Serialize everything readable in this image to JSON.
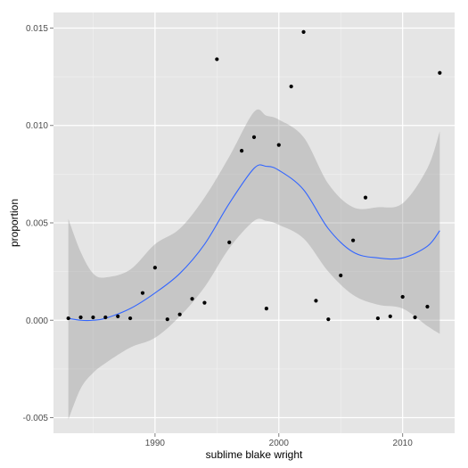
{
  "chart_data": {
    "type": "scatter",
    "xlabel": "sublime blake wright",
    "ylabel": "proportion",
    "xlim": [
      1981.8,
      2014.2
    ],
    "ylim": [
      -0.0058,
      0.0158
    ],
    "x_ticks": [
      1990,
      2000,
      2010
    ],
    "y_ticks": [
      -0.005,
      0.0,
      0.005,
      0.01,
      0.015
    ],
    "y_tick_labels": [
      "-0.005",
      "0.000",
      "0.005",
      "0.010",
      "0.015"
    ],
    "grid": true,
    "colors": {
      "panel": "#e5e5e5",
      "grid_major": "#ffffff",
      "grid_minor": "#f2f2f2",
      "points": "#000000",
      "smooth_line": "#3366ff",
      "confidence_band": "#999999"
    },
    "points": [
      {
        "x": 1983,
        "y": 0.0001
      },
      {
        "x": 1984,
        "y": 0.00015
      },
      {
        "x": 1985,
        "y": 0.00015
      },
      {
        "x": 1986,
        "y": 0.00015
      },
      {
        "x": 1987,
        "y": 0.0002
      },
      {
        "x": 1988,
        "y": 0.0001
      },
      {
        "x": 1989,
        "y": 0.0014
      },
      {
        "x": 1990,
        "y": 0.0027
      },
      {
        "x": 1991,
        "y": 5e-05
      },
      {
        "x": 1992,
        "y": 0.0003
      },
      {
        "x": 1993,
        "y": 0.0011
      },
      {
        "x": 1994,
        "y": 0.0009
      },
      {
        "x": 1995,
        "y": 0.0134
      },
      {
        "x": 1996,
        "y": 0.004
      },
      {
        "x": 1997,
        "y": 0.0087
      },
      {
        "x": 1998,
        "y": 0.0094
      },
      {
        "x": 1999,
        "y": 0.0006
      },
      {
        "x": 2000,
        "y": 0.009
      },
      {
        "x": 2001,
        "y": 0.012
      },
      {
        "x": 2002,
        "y": 0.0148
      },
      {
        "x": 2003,
        "y": 0.001
      },
      {
        "x": 2004,
        "y": 5e-05
      },
      {
        "x": 2005,
        "y": 0.0023
      },
      {
        "x": 2006,
        "y": 0.0041
      },
      {
        "x": 2007,
        "y": 0.0063
      },
      {
        "x": 2008,
        "y": 0.0001
      },
      {
        "x": 2009,
        "y": 0.0002
      },
      {
        "x": 2010,
        "y": 0.0012
      },
      {
        "x": 2011,
        "y": 0.00015
      },
      {
        "x": 2012,
        "y": 0.0007
      },
      {
        "x": 2013,
        "y": 0.0127
      }
    ],
    "smooth": [
      {
        "x": 1983,
        "y": 0.0001,
        "lower": -0.0051,
        "upper": 0.0052
      },
      {
        "x": 1984,
        "y": 0.0,
        "lower": -0.0035,
        "upper": 0.0035
      },
      {
        "x": 1985,
        "y": 0.0,
        "lower": -0.0027,
        "upper": 0.0024
      },
      {
        "x": 1986,
        "y": 0.0001,
        "lower": -0.0022,
        "upper": 0.0022
      },
      {
        "x": 1988,
        "y": 0.0006,
        "lower": -0.0014,
        "upper": 0.0026
      },
      {
        "x": 1990,
        "y": 0.0014,
        "lower": -0.0009,
        "upper": 0.0039
      },
      {
        "x": 1992,
        "y": 0.0024,
        "lower": 0.0002,
        "upper": 0.0047
      },
      {
        "x": 1994,
        "y": 0.0039,
        "lower": 0.0017,
        "upper": 0.0063
      },
      {
        "x": 1996,
        "y": 0.006,
        "lower": 0.0037,
        "upper": 0.0084
      },
      {
        "x": 1998,
        "y": 0.0078,
        "lower": 0.0051,
        "upper": 0.0107
      },
      {
        "x": 1999,
        "y": 0.0079,
        "lower": 0.0051,
        "upper": 0.0105
      },
      {
        "x": 2000,
        "y": 0.0077,
        "lower": 0.0049,
        "upper": 0.0103
      },
      {
        "x": 2002,
        "y": 0.0067,
        "lower": 0.0042,
        "upper": 0.0094
      },
      {
        "x": 2004,
        "y": 0.0047,
        "lower": 0.0025,
        "upper": 0.007
      },
      {
        "x": 2006,
        "y": 0.0035,
        "lower": 0.0013,
        "upper": 0.0058
      },
      {
        "x": 2008,
        "y": 0.0032,
        "lower": 0.0008,
        "upper": 0.0058
      },
      {
        "x": 2010,
        "y": 0.0032,
        "lower": 0.0006,
        "upper": 0.006
      },
      {
        "x": 2012,
        "y": 0.0038,
        "lower": -0.0003,
        "upper": 0.0078
      },
      {
        "x": 2013,
        "y": 0.0046,
        "lower": -0.0007,
        "upper": 0.0097
      }
    ]
  }
}
